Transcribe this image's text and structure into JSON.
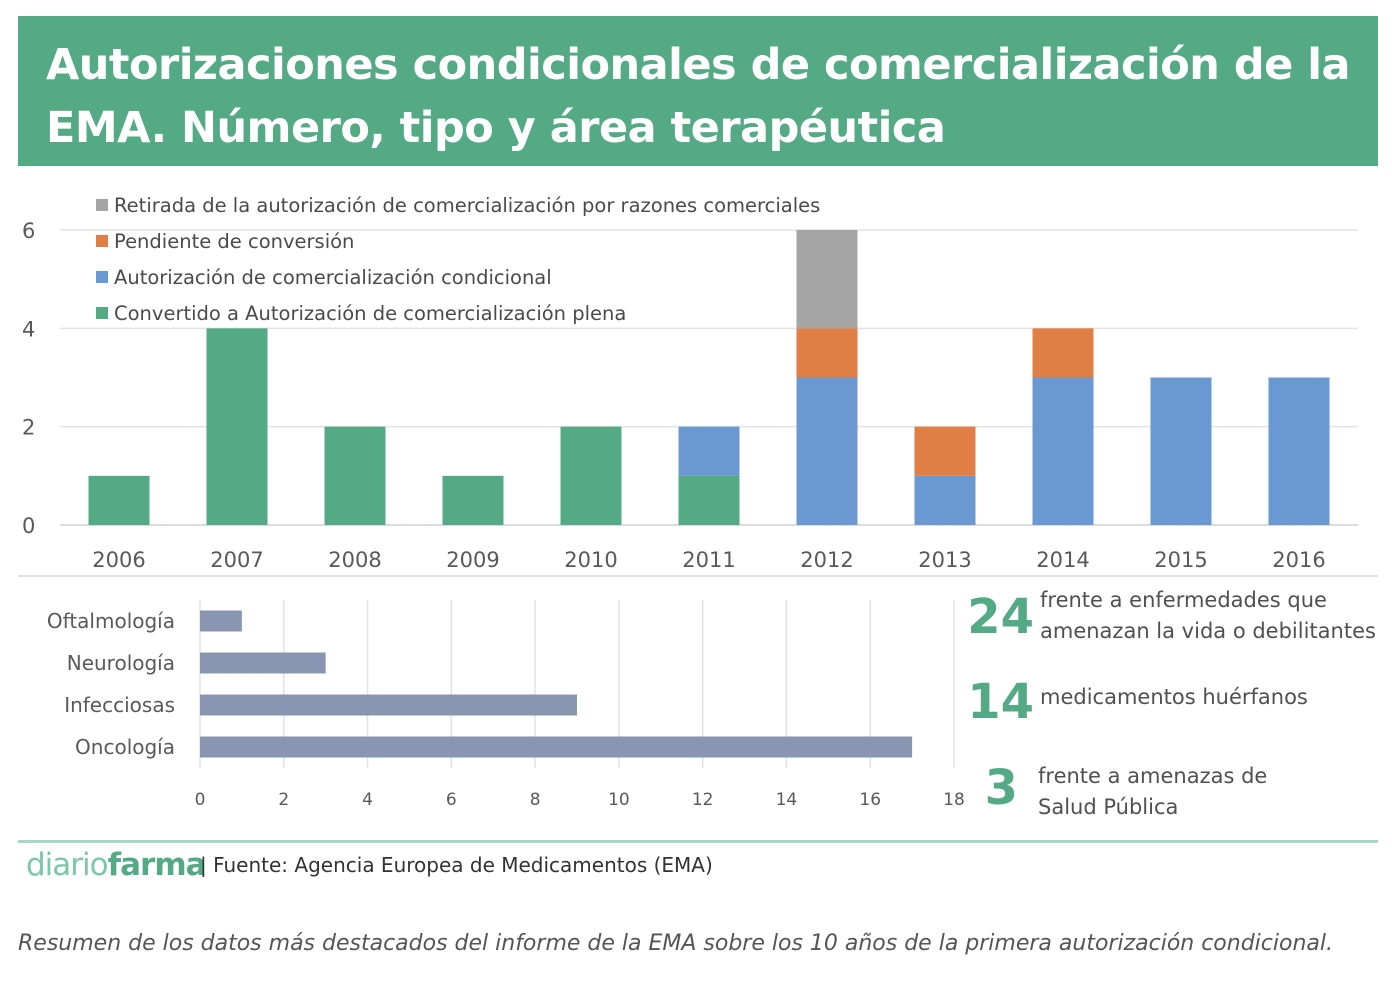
{
  "header": {
    "title": "Autorizaciones condicionales de comercialización de la EMA. Número, tipo y área terapéutica",
    "bg_color": "#55aa86"
  },
  "chart_data": [
    {
      "type": "bar",
      "stacked": true,
      "categories": [
        "2006",
        "2007",
        "2008",
        "2009",
        "2010",
        "2011",
        "2012",
        "2013",
        "2014",
        "2015",
        "2016"
      ],
      "series": [
        {
          "name": "Convertido a Autorización de comercialización plena",
          "color": "#55aa86",
          "values": [
            1,
            4,
            2,
            1,
            2,
            1,
            0,
            0,
            0,
            0,
            0
          ]
        },
        {
          "name": "Autorización de comercialización condicional",
          "color": "#6a98d0",
          "values": [
            0,
            0,
            0,
            0,
            0,
            1,
            3,
            1,
            3,
            3,
            3
          ]
        },
        {
          "name": "Pendiente de conversión",
          "color": "#e07f45",
          "values": [
            0,
            0,
            0,
            0,
            0,
            0,
            1,
            1,
            1,
            0,
            0
          ]
        },
        {
          "name": "Retirada de la autorización de comercialización por razones comerciales",
          "color": "#a5a5a5",
          "values": [
            0,
            0,
            0,
            0,
            0,
            0,
            2,
            0,
            0,
            0,
            0
          ]
        }
      ],
      "legend_order": [
        3,
        2,
        1,
        0
      ],
      "legend_position": "top-left",
      "ylim": [
        0,
        6
      ],
      "yticks": [
        "0",
        "2",
        "4",
        "6"
      ],
      "grid": true
    },
    {
      "type": "bar",
      "orientation": "horizontal",
      "categories": [
        "Oftalmología",
        "Neurología",
        "Infecciosas",
        "Oncología"
      ],
      "values": [
        1,
        3,
        9,
        17
      ],
      "color": "#8896b2",
      "xlim": [
        0,
        18
      ],
      "xticks": [
        "0",
        "2",
        "4",
        "6",
        "8",
        "10",
        "12",
        "14",
        "16",
        "18"
      ],
      "grid": true
    }
  ],
  "stats": [
    {
      "number": "24",
      "text": "frente a enfermedades que amenazan la vida o debilitantes"
    },
    {
      "number": "14",
      "text": "medicamentos huérfanos"
    },
    {
      "number": "3",
      "text": "frente a amenazas de Salud Pública"
    }
  ],
  "footer": {
    "brand_light": "diario",
    "brand_bold": "farma",
    "source": "| Fuente: Agencia Europea de Medicamentos (EMA)"
  },
  "caption": "Resumen de los datos más destacados del informe de la EMA sobre los 10 años de la primera autorización condicional."
}
